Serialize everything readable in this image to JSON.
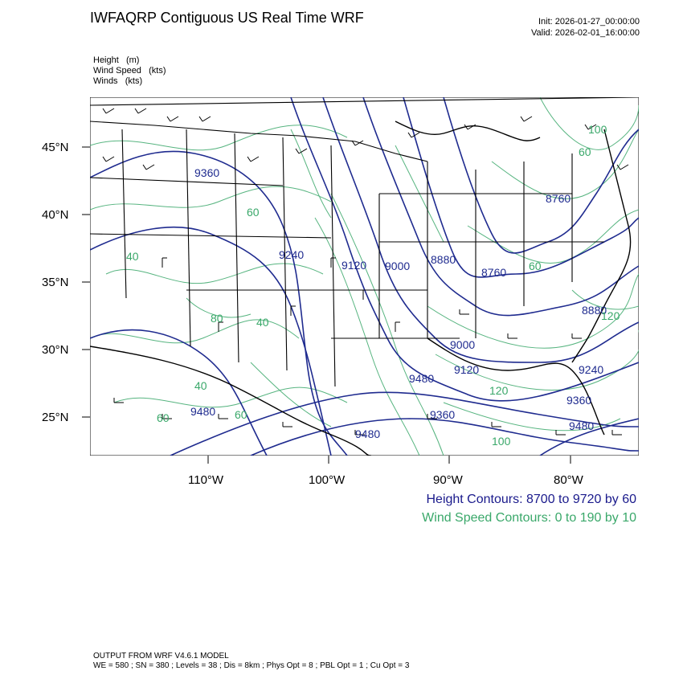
{
  "header": {
    "title": "IWFAQRP Contiguous US Real Time WRF",
    "init": "Init: 2026-01-27_00:00:00",
    "valid": "Valid: 2026-02-01_16:00:00"
  },
  "legend": {
    "items": [
      "Height   (m)",
      "Wind Speed   (kts)",
      "Winds   (kts)"
    ]
  },
  "map": {
    "lat_labels": [
      "45°N",
      "40°N",
      "35°N",
      "30°N",
      "25°N"
    ],
    "lon_labels": [
      "110°W",
      "100°W",
      "90°W",
      "80°W"
    ],
    "height_labels": [
      "9360",
      "9240",
      "9120",
      "9000",
      "8880",
      "8760",
      "8760",
      "8880",
      "9000",
      "9120",
      "9240",
      "9360",
      "9360",
      "9480",
      "9480",
      "9480",
      "9480"
    ],
    "wind_labels": [
      "60",
      "40",
      "80",
      "40",
      "120",
      "40",
      "60",
      "60",
      "60",
      "120",
      "100",
      "100",
      "60"
    ],
    "colors": {
      "height": "#1f2b8f",
      "wind": "#3aa86a",
      "boundary": "#000000"
    }
  },
  "contour_info": {
    "height": "Height Contours: 8700 to 9720 by 60",
    "wind": "Wind Speed Contours: 0 to 190 by 10"
  },
  "footer": {
    "line1": "OUTPUT FROM WRF V4.6.1 MODEL",
    "line2": "WE = 580 ; SN = 380 ; Levels = 38 ; Dis = 8km ; Phys Opt = 8 ; PBL Opt = 1 ; Cu Opt = 3"
  }
}
